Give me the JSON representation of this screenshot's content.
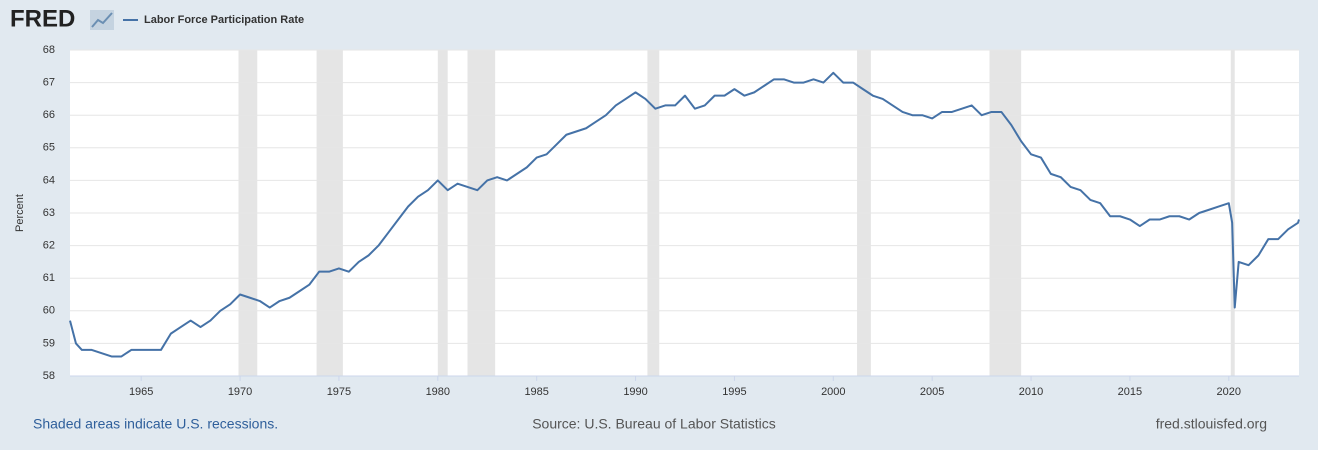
{
  "logo": "FRED",
  "chart_data": {
    "type": "line",
    "series": [
      {
        "name": "Labor Force Participation Rate",
        "color": "#4572a7",
        "x": [
          1961.4,
          1961.7,
          1962,
          1962.5,
          1963,
          1963.5,
          1964,
          1964.5,
          1965,
          1965.5,
          1966,
          1966.5,
          1967,
          1967.5,
          1968,
          1968.5,
          1969,
          1969.5,
          1970,
          1970.5,
          1971,
          1971.5,
          1972,
          1972.5,
          1973,
          1973.5,
          1974,
          1974.5,
          1975,
          1975.5,
          1976,
          1976.5,
          1977,
          1977.5,
          1978,
          1978.5,
          1979,
          1979.5,
          1980,
          1980.5,
          1981,
          1981.5,
          1982,
          1982.5,
          1983,
          1983.5,
          1984,
          1984.5,
          1985,
          1985.5,
          1986,
          1986.5,
          1987,
          1987.5,
          1988,
          1988.5,
          1989,
          1989.5,
          1990,
          1990.5,
          1991,
          1991.5,
          1992,
          1992.5,
          1993,
          1993.5,
          1994,
          1994.5,
          1995,
          1995.5,
          1996,
          1996.5,
          1997,
          1997.5,
          1998,
          1998.5,
          1999,
          1999.5,
          2000,
          2000.5,
          2001,
          2001.5,
          2002,
          2002.5,
          2003,
          2003.5,
          2004,
          2004.5,
          2005,
          2005.5,
          2006,
          2006.5,
          2007,
          2007.5,
          2008,
          2008.5,
          2009,
          2009.5,
          2010,
          2010.5,
          2011,
          2011.5,
          2012,
          2012.5,
          2013,
          2013.5,
          2014,
          2014.5,
          2015,
          2015.5,
          2016,
          2016.5,
          2017,
          2017.5,
          2018,
          2018.5,
          2019,
          2019.5,
          2020,
          2020.17,
          2020.3,
          2020.5,
          2021,
          2021.5,
          2022,
          2022.5,
          2023,
          2023.5,
          2023.55
        ],
        "values": [
          59.7,
          59.0,
          58.8,
          58.8,
          58.7,
          58.6,
          58.6,
          58.8,
          58.8,
          58.8,
          58.8,
          59.3,
          59.5,
          59.7,
          59.5,
          59.7,
          60.0,
          60.2,
          60.5,
          60.4,
          60.3,
          60.1,
          60.3,
          60.4,
          60.6,
          60.8,
          61.2,
          61.2,
          61.3,
          61.2,
          61.5,
          61.7,
          62.0,
          62.4,
          62.8,
          63.2,
          63.5,
          63.7,
          64.0,
          63.7,
          63.9,
          63.8,
          63.7,
          64.0,
          64.1,
          64.0,
          64.2,
          64.4,
          64.7,
          64.8,
          65.1,
          65.4,
          65.5,
          65.6,
          65.8,
          66.0,
          66.3,
          66.5,
          66.7,
          66.5,
          66.2,
          66.3,
          66.3,
          66.6,
          66.2,
          66.3,
          66.6,
          66.6,
          66.8,
          66.6,
          66.7,
          66.9,
          67.1,
          67.1,
          67.0,
          67.0,
          67.1,
          67.0,
          67.3,
          67.0,
          67.0,
          66.8,
          66.6,
          66.5,
          66.3,
          66.1,
          66.0,
          66.0,
          65.9,
          66.1,
          66.1,
          66.2,
          66.3,
          66.0,
          66.1,
          66.1,
          65.7,
          65.2,
          64.8,
          64.7,
          64.2,
          64.1,
          63.8,
          63.7,
          63.4,
          63.3,
          62.9,
          62.9,
          62.8,
          62.6,
          62.8,
          62.8,
          62.9,
          62.9,
          62.8,
          63.0,
          63.1,
          63.2,
          63.3,
          62.7,
          60.1,
          61.5,
          61.4,
          61.7,
          62.2,
          62.2,
          62.5,
          62.7,
          62.8
        ]
      }
    ],
    "recessions": [
      [
        1969.92,
        1970.87
      ],
      [
        1973.87,
        1975.2
      ],
      [
        1980.0,
        1980.5
      ],
      [
        1981.5,
        1982.9
      ],
      [
        1990.6,
        1991.2
      ],
      [
        2001.2,
        2001.9
      ],
      [
        2007.9,
        2009.5
      ],
      [
        2020.1,
        2020.3
      ]
    ],
    "ylabel": "Percent",
    "xlim": [
      1961.4,
      2023.55
    ],
    "xticks": [
      1965,
      1970,
      1975,
      1980,
      1985,
      1990,
      1995,
      2000,
      2005,
      2010,
      2015,
      2020
    ],
    "ylim": [
      58,
      68
    ],
    "yticks": [
      58,
      59,
      60,
      61,
      62,
      63,
      64,
      65,
      66,
      67,
      68
    ],
    "grid": true,
    "note": "Shaded areas indicate U.S. recessions.",
    "source": "Source: U.S. Bureau of Labor Statistics",
    "site": "fred.stlouisfed.org"
  }
}
